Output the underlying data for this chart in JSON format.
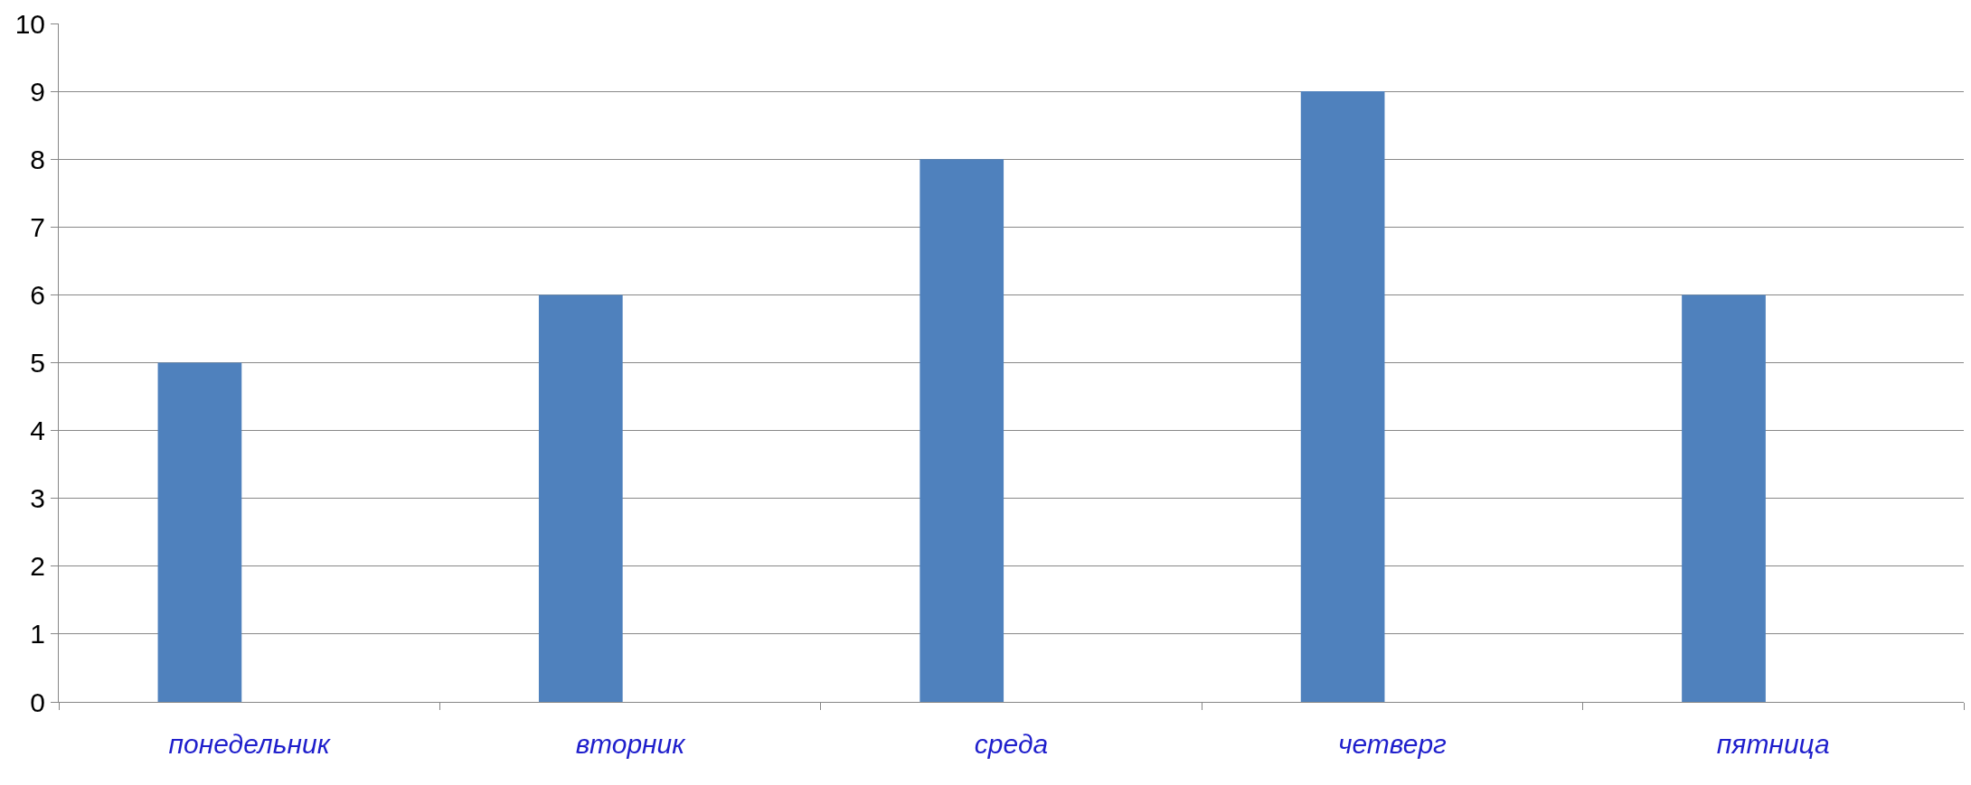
{
  "chart_data": {
    "type": "bar",
    "categories": [
      "понедельник",
      "вторник",
      "среда",
      "четверг",
      "пятница"
    ],
    "values": [
      5,
      6,
      8,
      9,
      6
    ],
    "color": "#4f81bd",
    "ylim": [
      0,
      10
    ],
    "yticks": [
      0,
      1,
      2,
      3,
      4,
      5,
      6,
      7,
      8,
      9,
      10
    ],
    "grid": "y",
    "legend": false
  }
}
